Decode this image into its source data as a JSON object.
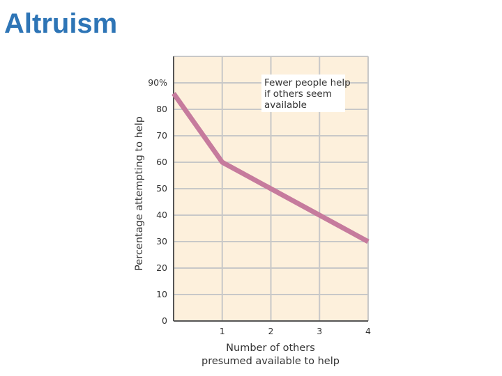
{
  "slide": {
    "title": "Altruism"
  },
  "chart_data": {
    "type": "line",
    "title": "",
    "xlabel_lines": [
      "Number of others",
      "presumed available to help"
    ],
    "ylabel": "Percentage attempting to help",
    "x_tick_labels": [
      "1",
      "2",
      "3",
      "4"
    ],
    "y_tick_labels": [
      "0",
      "10",
      "20",
      "30",
      "40",
      "50",
      "60",
      "70",
      "80",
      "90%"
    ],
    "y_ticks": [
      0,
      10,
      20,
      30,
      40,
      50,
      60,
      70,
      80,
      90
    ],
    "x_ticks": [
      1,
      2,
      3,
      4
    ],
    "xlim": [
      0,
      4
    ],
    "ylim": [
      0,
      100
    ],
    "grid": true,
    "series": [
      {
        "x": [
          0,
          1,
          2,
          3,
          4
        ],
        "y": [
          86,
          60,
          50,
          40,
          30
        ],
        "color": "#c67b9d"
      }
    ],
    "annotation_lines": [
      "Fewer people help",
      "if others seem",
      "available"
    ],
    "colors": {
      "plot_background": "#fdf0dc",
      "grid": "#c8c8c8",
      "line": "#c67b9d",
      "axis": "#555555"
    }
  }
}
